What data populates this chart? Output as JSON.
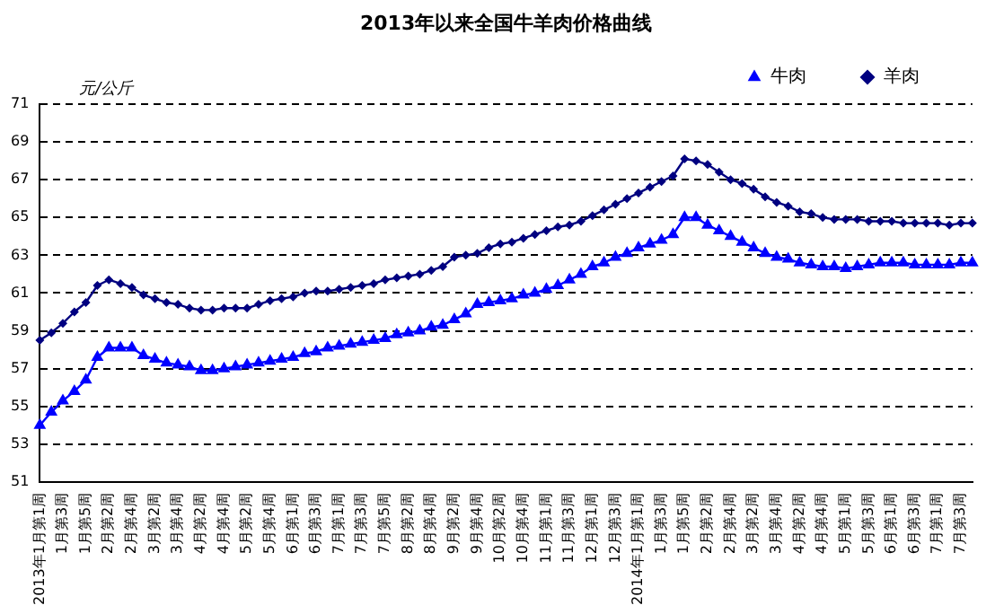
{
  "chart_data": {
    "type": "line",
    "title": "2013年以来全国牛羊肉价格曲线",
    "ylabel": "元/公斤",
    "categories": [
      "2013年1月第1周",
      null,
      "1月第3周",
      null,
      "1月第5周",
      null,
      "2月第2周",
      null,
      "2月第4周",
      null,
      "3月第2周",
      null,
      "3月第4周",
      null,
      "4月第2周",
      null,
      "4月第4周",
      null,
      "5月第2周",
      null,
      "5月第4周",
      null,
      "6月第1周",
      null,
      "6月第3周",
      null,
      "7月第1周",
      null,
      "7月第3周",
      null,
      "7月第5周",
      null,
      "8月第2周",
      null,
      "8月第4周",
      null,
      "9月第2周",
      null,
      "9月第4周",
      null,
      "10月第2周",
      null,
      "10月第4周",
      null,
      "11月第1周",
      null,
      "11月第3周",
      null,
      "12月第1周",
      null,
      "12月第3周",
      null,
      "2014年1月第1周",
      null,
      "1月第3周",
      null,
      "1月第5周",
      null,
      "2月第2周",
      null,
      "2月第4周",
      null,
      "3月第2周",
      null,
      "3月第4周",
      null,
      "4月第2周",
      null,
      "4月第4周",
      null,
      "5月第1周",
      null,
      "5月第3周",
      null,
      "6月第1周",
      null,
      "6月第3周",
      null,
      "7月第1周",
      null,
      "7月第3周",
      null
    ],
    "series": [
      {
        "name": "牛肉",
        "color": "#0000ff",
        "marker": "triangle",
        "values": [
          54.0,
          54.7,
          55.3,
          55.8,
          56.4,
          57.6,
          58.1,
          58.1,
          58.1,
          57.7,
          57.5,
          57.3,
          57.2,
          57.1,
          56.9,
          56.9,
          57.0,
          57.1,
          57.2,
          57.3,
          57.4,
          57.5,
          57.6,
          57.8,
          57.9,
          58.1,
          58.2,
          58.3,
          58.4,
          58.5,
          58.6,
          58.8,
          58.9,
          59.0,
          59.2,
          59.3,
          59.6,
          59.9,
          60.4,
          60.5,
          60.6,
          60.7,
          60.9,
          61.0,
          61.2,
          61.4,
          61.7,
          62.0,
          62.4,
          62.6,
          62.9,
          63.1,
          63.4,
          63.6,
          63.8,
          64.1,
          65.0,
          65.0,
          64.6,
          64.3,
          64.0,
          63.7,
          63.4,
          63.1,
          62.9,
          62.8,
          62.6,
          62.5,
          62.4,
          62.4,
          62.3,
          62.4,
          62.5,
          62.6,
          62.6,
          62.6,
          62.5,
          62.5,
          62.5,
          62.5,
          62.6,
          62.6
        ]
      },
      {
        "name": "羊肉",
        "color": "#000080",
        "marker": "diamond",
        "values": [
          58.5,
          58.9,
          59.4,
          60.0,
          60.5,
          61.4,
          61.7,
          61.5,
          61.3,
          60.9,
          60.7,
          60.5,
          60.4,
          60.2,
          60.1,
          60.1,
          60.2,
          60.2,
          60.2,
          60.4,
          60.6,
          60.7,
          60.8,
          61.0,
          61.1,
          61.1,
          61.2,
          61.3,
          61.4,
          61.5,
          61.7,
          61.8,
          61.9,
          62.0,
          62.2,
          62.4,
          62.9,
          63.0,
          63.1,
          63.4,
          63.6,
          63.7,
          63.9,
          64.1,
          64.3,
          64.5,
          64.6,
          64.8,
          65.1,
          65.4,
          65.7,
          66.0,
          66.3,
          66.6,
          66.9,
          67.2,
          68.1,
          68.0,
          67.8,
          67.4,
          67.0,
          66.8,
          66.5,
          66.1,
          65.8,
          65.6,
          65.3,
          65.2,
          65.0,
          64.9,
          64.9,
          64.9,
          64.8,
          64.8,
          64.8,
          64.7,
          64.7,
          64.7,
          64.7,
          64.6,
          64.7,
          64.7
        ]
      }
    ],
    "ylim": [
      51,
      71
    ],
    "yticks": [
      51,
      53,
      55,
      57,
      59,
      61,
      63,
      65,
      67,
      69,
      71
    ],
    "grid": "y",
    "legend": "top right",
    "line_style": "solid"
  }
}
